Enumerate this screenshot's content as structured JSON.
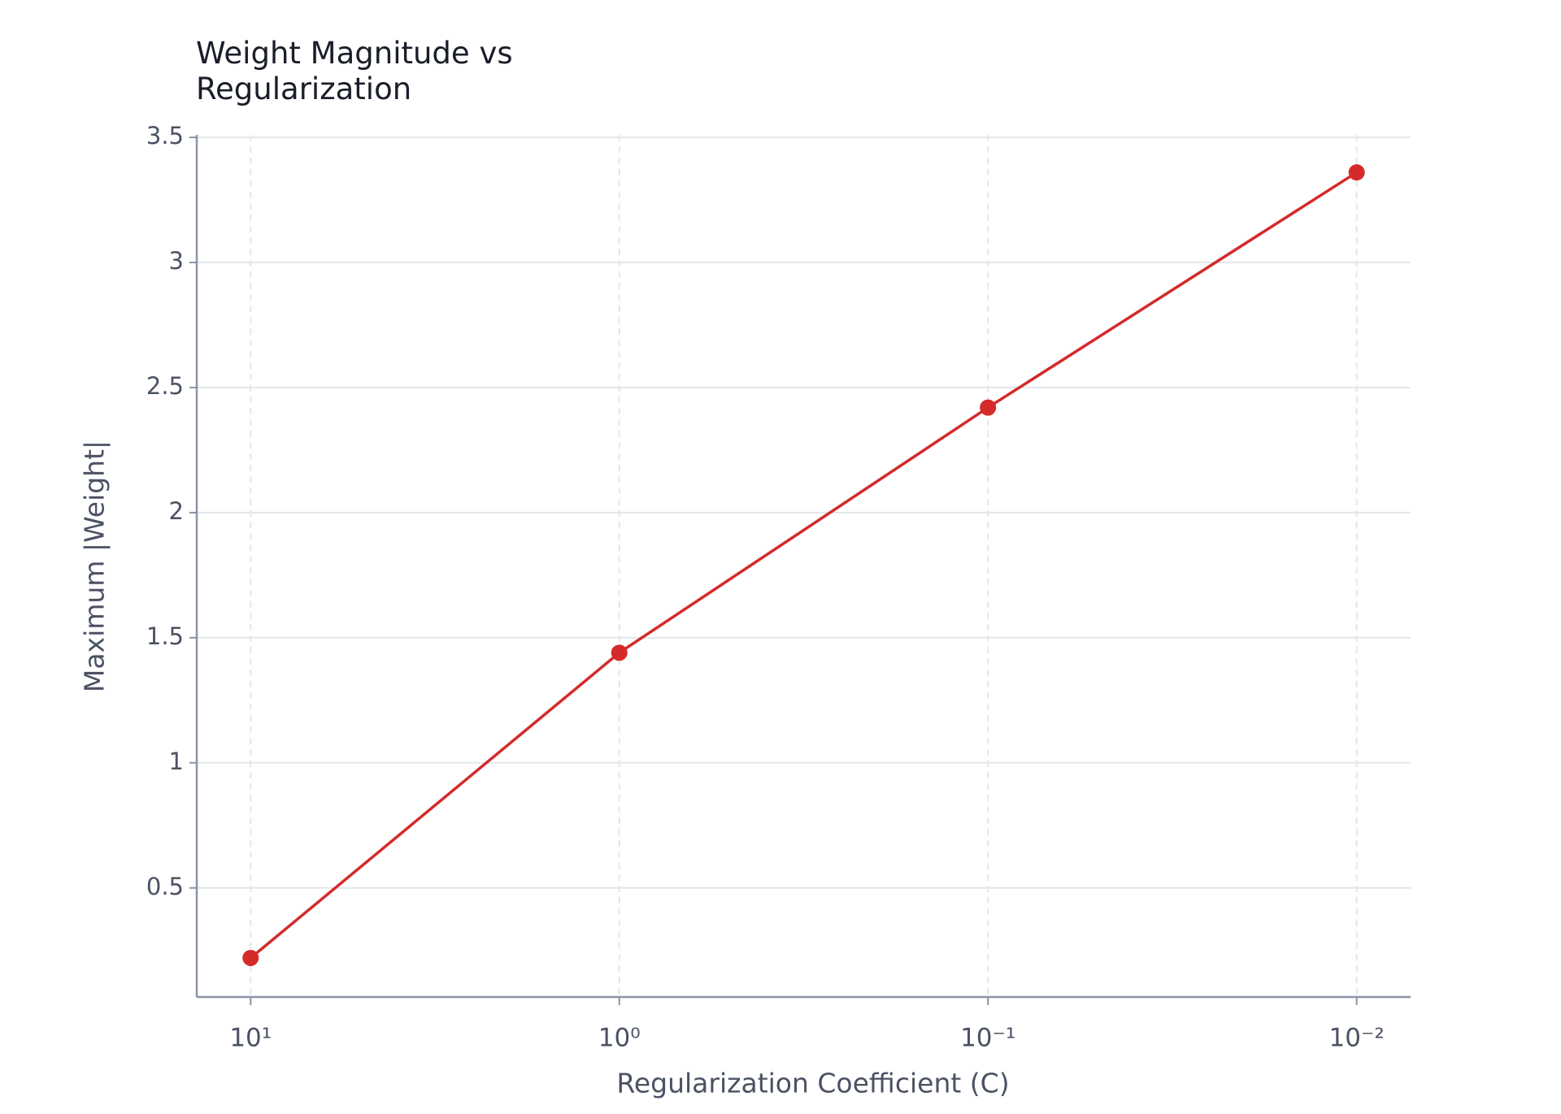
{
  "chart_data": {
    "type": "line",
    "title": "Weight Magnitude vs Regularization",
    "x_label": "Regularization Coefficient (C)",
    "y_label": "Maximum |Weight|",
    "x": [
      10,
      1,
      0.1,
      0.01
    ],
    "series": [
      {
        "name": "Maximum |Weight|",
        "color": "#d42a2a",
        "values": [
          0.22,
          1.44,
          2.42,
          3.36
        ]
      }
    ],
    "xscale": "log",
    "xlim": [
      14,
      0.00714
    ],
    "xticks": [
      {
        "value": 10,
        "label": "10¹"
      },
      {
        "value": 1,
        "label": "10⁰"
      },
      {
        "value": 0.1,
        "label": "10⁻¹"
      },
      {
        "value": 0.01,
        "label": "10⁻²"
      }
    ],
    "ylim": [
      0.064,
      3.51
    ],
    "yticks": [
      0.5,
      1.0,
      1.5,
      2.0,
      2.5,
      3.0,
      3.5
    ],
    "grid": true
  }
}
